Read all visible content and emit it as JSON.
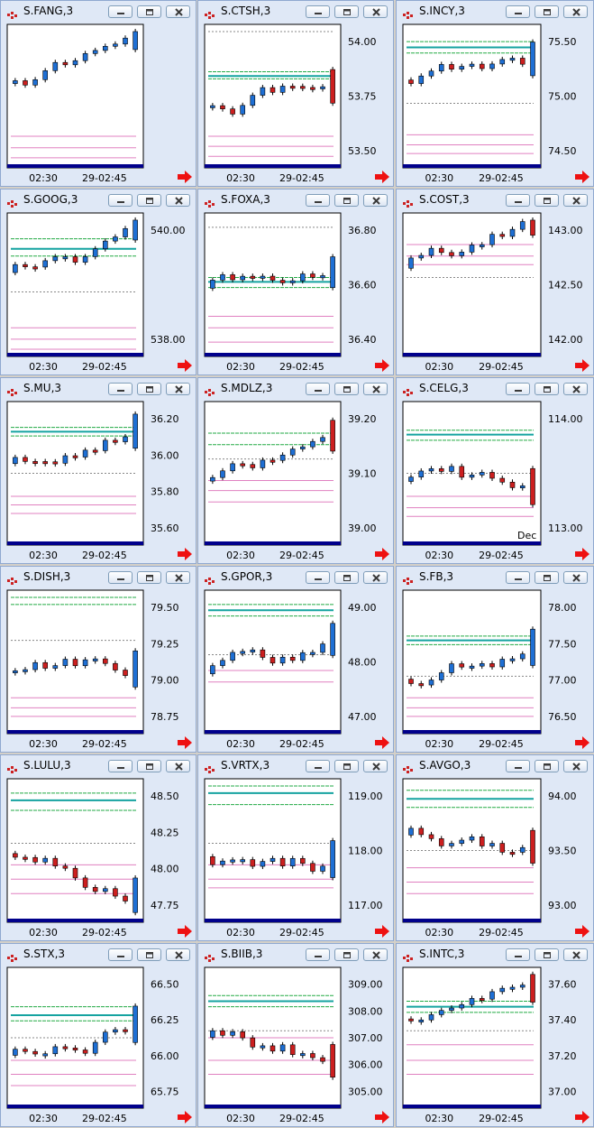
{
  "theme": {
    "up_color": "#1e6fd4",
    "down_color": "#cc1f1f",
    "green_line": "#22aa44",
    "teal_line": "#15a3a0",
    "pink_line": "#e080c0",
    "gray_line": "#888888",
    "bar_color": "#00008b",
    "arrow_color": "#ee1111"
  },
  "charts": [
    {
      "title": "S.FANG,3",
      "xlabels": [
        "02:30",
        "29-02:45"
      ],
      "yticks": [],
      "candles": []
    },
    {
      "title": "S.CTSH,3",
      "xlabels": [
        "02:30",
        "29-02:45"
      ],
      "yticks": [
        "54.00",
        "53.75",
        "53.50"
      ],
      "candles": []
    },
    {
      "title": "S.INCY,3",
      "xlabels": [
        "02:30",
        "29-02:45"
      ],
      "yticks": [
        "75.50",
        "75.00",
        "74.50"
      ],
      "candles": []
    },
    {
      "title": "S.GOOG,3",
      "xlabels": [
        "02:30",
        "29-02:45"
      ],
      "yticks": [
        "540.00",
        "538.00"
      ],
      "candles": []
    },
    {
      "title": "S.FOXA,3",
      "xlabels": [
        "02:30",
        "29-02:45"
      ],
      "yticks": [
        "36.80",
        "36.60",
        "36.40"
      ],
      "candles": []
    },
    {
      "title": "S.COST,3",
      "xlabels": [
        "02:30",
        "29-02:45"
      ],
      "yticks": [
        "143.00",
        "142.50",
        "142.00"
      ],
      "candles": []
    },
    {
      "title": "S.MU,3",
      "xlabels": [
        "02:30",
        "29-02:45"
      ],
      "yticks": [
        "36.20",
        "36.00",
        "35.80",
        "35.60"
      ],
      "candles": []
    },
    {
      "title": "S.MDLZ,3",
      "xlabels": [
        "02:30",
        "29-02:45"
      ],
      "yticks": [
        "39.20",
        "39.10",
        "39.00"
      ],
      "candles": []
    },
    {
      "title": "S.CELG,3",
      "xlabels": [
        "02:30",
        "29-02:45"
      ],
      "yticks": [
        "114.00",
        "113.00"
      ],
      "extra_label": "Dec",
      "candles": []
    },
    {
      "title": "S.DISH,3",
      "xlabels": [
        "02:30",
        "29-02:45"
      ],
      "yticks": [
        "79.50",
        "79.25",
        "79.00",
        "78.75"
      ],
      "candles": []
    },
    {
      "title": "S.GPOR,3",
      "xlabels": [
        "02:30",
        "29-02:45"
      ],
      "yticks": [
        "49.00",
        "48.00",
        "47.00"
      ],
      "candles": []
    },
    {
      "title": "S.FB,3",
      "xlabels": [
        "02:30",
        "29-02:45"
      ],
      "yticks": [
        "78.00",
        "77.50",
        "77.00",
        "76.50"
      ],
      "candles": []
    },
    {
      "title": "S.LULU,3",
      "xlabels": [
        "02:30",
        "29-02:45"
      ],
      "yticks": [
        "48.50",
        "48.25",
        "48.00",
        "47.75"
      ],
      "candles": []
    },
    {
      "title": "S.VRTX,3",
      "xlabels": [
        "02:30",
        "29-02:45"
      ],
      "yticks": [
        "119.00",
        "118.00",
        "117.00"
      ],
      "candles": []
    },
    {
      "title": "S.AVGO,3",
      "xlabels": [
        "02:30",
        "29-02:45"
      ],
      "yticks": [
        "94.00",
        "93.50",
        "93.00"
      ],
      "candles": []
    },
    {
      "title": "S.STX,3",
      "xlabels": [
        "02:30",
        "29-02:45"
      ],
      "yticks": [
        "66.50",
        "66.25",
        "66.00",
        "65.75"
      ],
      "candles": []
    },
    {
      "title": "S.BIIB,3",
      "xlabels": [
        "02:30",
        "29-02:45"
      ],
      "yticks": [
        "309.00",
        "308.00",
        "307.00",
        "306.00",
        "305.00"
      ],
      "candles": []
    },
    {
      "title": "S.INTC,3",
      "xlabels": [
        "02:30",
        "29-02:45"
      ],
      "yticks": [
        "37.60",
        "37.40",
        "37.20",
        "37.00"
      ],
      "candles": []
    }
  ]
}
